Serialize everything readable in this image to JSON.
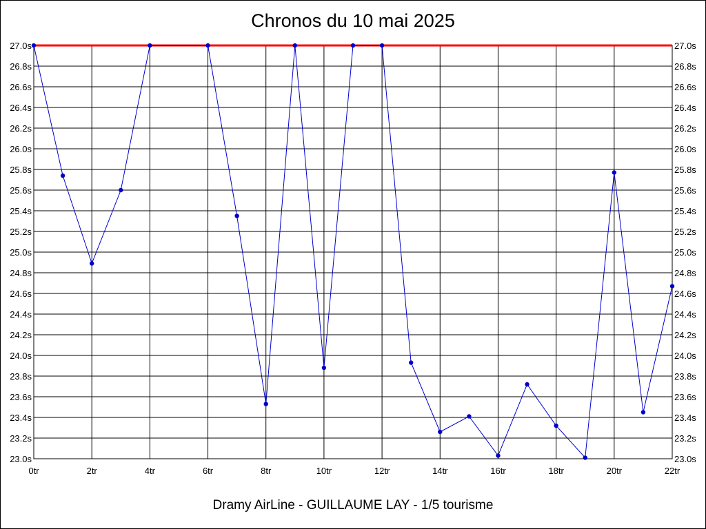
{
  "chart_data": {
    "type": "line",
    "title": "Chronos du 10 mai 2025",
    "footer": "Dramy AirLine - GUILLAUME LAY - 1/5 tourisme",
    "x_ticks": [
      "0tr",
      "2tr",
      "4tr",
      "6tr",
      "8tr",
      "10tr",
      "12tr",
      "14tr",
      "16tr",
      "18tr",
      "20tr",
      "22tr"
    ],
    "x_tick_values": [
      0,
      2,
      4,
      6,
      8,
      10,
      12,
      14,
      16,
      18,
      20,
      22
    ],
    "y_ticks": [
      "27.0s",
      "26.8s",
      "26.6s",
      "26.4s",
      "26.2s",
      "26.0s",
      "25.8s",
      "25.6s",
      "25.4s",
      "25.2s",
      "25.0s",
      "24.8s",
      "24.6s",
      "24.4s",
      "24.2s",
      "24.0s",
      "23.8s",
      "23.6s",
      "23.4s",
      "23.2s",
      "23.0s"
    ],
    "y_tick_values": [
      27.0,
      26.8,
      26.6,
      26.4,
      26.2,
      26.0,
      25.8,
      25.6,
      25.4,
      25.2,
      25.0,
      24.8,
      24.6,
      24.4,
      24.2,
      24.0,
      23.8,
      23.6,
      23.4,
      23.2,
      23.0
    ],
    "xlim": [
      0,
      22
    ],
    "ylim": [
      23.0,
      27.0
    ],
    "grid": true,
    "reference_line": {
      "y": 27.0,
      "color": "#ff0000"
    },
    "series": [
      {
        "color": "#0000cc",
        "x": [
          0,
          1,
          2,
          3,
          4,
          6,
          7,
          8,
          9,
          10,
          11,
          12,
          13,
          14,
          15,
          16,
          17,
          18,
          19,
          20,
          21,
          22
        ],
        "y": [
          27.0,
          25.74,
          24.89,
          25.6,
          27.0,
          27.0,
          25.35,
          23.53,
          27.0,
          23.88,
          27.0,
          27.0,
          23.93,
          23.26,
          23.41,
          23.03,
          23.72,
          23.32,
          23.01,
          25.77,
          23.45,
          24.67
        ]
      }
    ]
  }
}
